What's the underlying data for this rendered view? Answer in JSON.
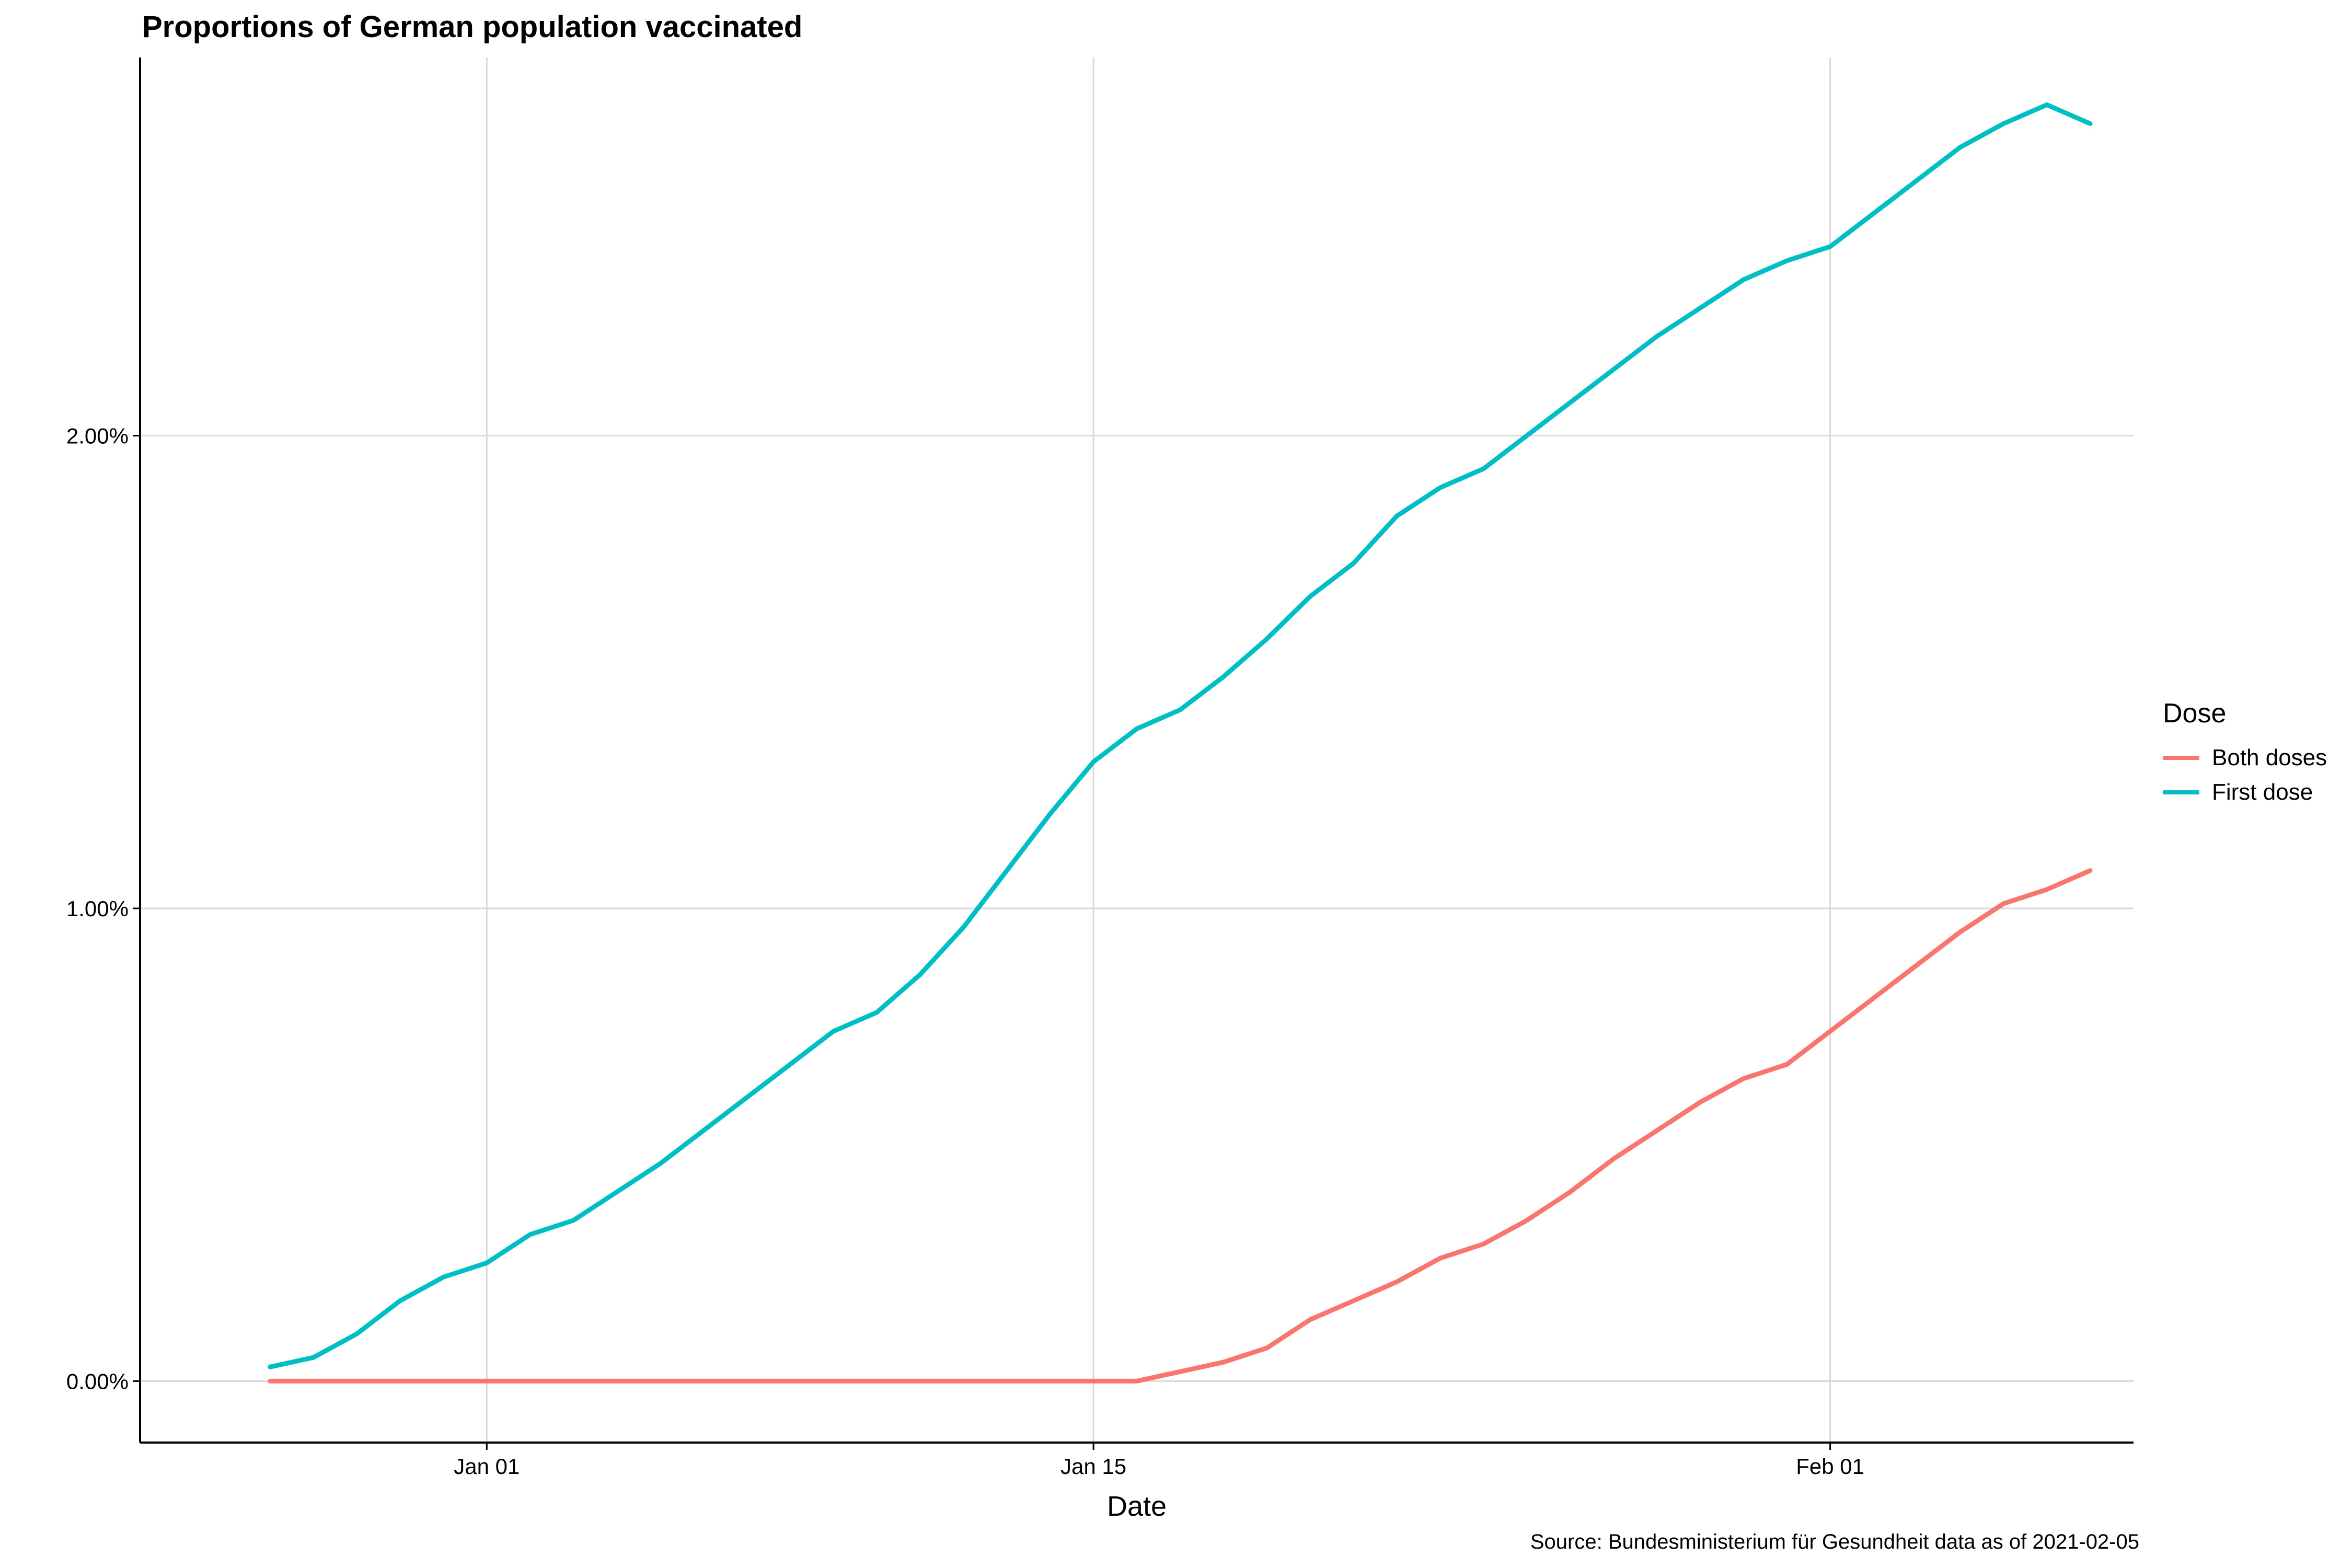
{
  "chart_data": {
    "type": "line",
    "title": "Proportions of German population vaccinated",
    "xlabel": "Date",
    "ylabel": "",
    "caption": "Source: Bundesministerium für Gesundheit data as of 2021-02-05",
    "legend_title": "Dose",
    "legend_position": "right",
    "grid": true,
    "x_ticks": [
      {
        "date": "2021-01-01",
        "label": "Jan 01"
      },
      {
        "date": "2021-01-15",
        "label": "Jan 15"
      },
      {
        "date": "2021-02-01",
        "label": "Feb 01"
      }
    ],
    "y_ticks": [
      {
        "value": 0,
        "label": "0.00%"
      },
      {
        "value": 1,
        "label": "1.00%"
      },
      {
        "value": 2,
        "label": "2.00%"
      }
    ],
    "xlim": [
      "2020-12-24",
      "2021-02-08"
    ],
    "ylim": [
      -0.13,
      2.8
    ],
    "x": [
      "2020-12-27",
      "2020-12-28",
      "2020-12-29",
      "2020-12-30",
      "2020-12-31",
      "2021-01-01",
      "2021-01-02",
      "2021-01-03",
      "2021-01-04",
      "2021-01-05",
      "2021-01-06",
      "2021-01-07",
      "2021-01-08",
      "2021-01-09",
      "2021-01-10",
      "2021-01-11",
      "2021-01-12",
      "2021-01-13",
      "2021-01-14",
      "2021-01-15",
      "2021-01-16",
      "2021-01-17",
      "2021-01-18",
      "2021-01-19",
      "2021-01-20",
      "2021-01-21",
      "2021-01-22",
      "2021-01-23",
      "2021-01-24",
      "2021-01-25",
      "2021-01-26",
      "2021-01-27",
      "2021-01-28",
      "2021-01-29",
      "2021-01-30",
      "2021-01-31",
      "2021-02-01",
      "2021-02-02",
      "2021-02-03",
      "2021-02-04",
      "2021-02-05",
      "2021-02-06",
      "2021-02-07"
    ],
    "series": [
      {
        "name": "Both doses",
        "color": "#F8766D",
        "values": [
          0,
          0,
          0,
          0,
          0,
          0,
          0,
          0,
          0,
          0,
          0,
          0,
          0,
          0,
          0,
          0,
          0,
          0,
          0,
          0,
          0,
          0.02,
          0.04,
          0.07,
          0.13,
          0.17,
          0.21,
          0.26,
          0.29,
          0.34,
          0.4,
          0.47,
          0.53,
          0.59,
          0.64,
          0.67,
          0.74,
          0.81,
          0.88,
          0.95,
          1.01,
          1.04,
          1.08
        ]
      },
      {
        "name": "First dose",
        "color": "#00BFC4",
        "values": [
          0.03,
          0.05,
          0.1,
          0.17,
          0.22,
          0.25,
          0.31,
          0.34,
          0.4,
          0.46,
          0.53,
          0.6,
          0.67,
          0.74,
          0.78,
          0.86,
          0.96,
          1.08,
          1.2,
          1.31,
          1.38,
          1.42,
          1.49,
          1.57,
          1.66,
          1.73,
          1.83,
          1.89,
          1.93,
          2.0,
          2.07,
          2.14,
          2.21,
          2.27,
          2.33,
          2.37,
          2.4,
          2.47,
          2.54,
          2.61,
          2.66,
          2.7,
          2.66
        ]
      }
    ]
  }
}
